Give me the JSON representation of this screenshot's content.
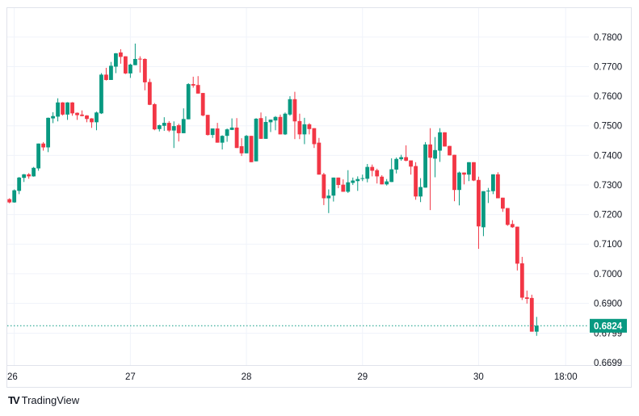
{
  "branding": {
    "name": "TradingView",
    "logo_glyph": "TV"
  },
  "colors": {
    "up": "#089981",
    "down": "#F23645",
    "grid": "#F0F3FA",
    "border": "#E0E3EB",
    "text": "#131722"
  },
  "chart_data": {
    "type": "candlestick",
    "interval": "1h",
    "first_candle": "25 23:00",
    "ohlc_columns": [
      "open",
      "high",
      "low",
      "close"
    ],
    "ohlc": [
      [
        0.7252,
        0.7255,
        0.7238,
        0.7241
      ],
      [
        0.7241,
        0.7285,
        0.724,
        0.7282
      ],
      [
        0.728,
        0.7327,
        0.7269,
        0.7325
      ],
      [
        0.7324,
        0.7337,
        0.731,
        0.7336
      ],
      [
        0.7336,
        0.734,
        0.7321,
        0.7329
      ],
      [
        0.7329,
        0.7361,
        0.7328,
        0.7358
      ],
      [
        0.7356,
        0.744,
        0.7348,
        0.744
      ],
      [
        0.744,
        0.7445,
        0.7416,
        0.7427
      ],
      [
        0.7427,
        0.7528,
        0.7411,
        0.7527
      ],
      [
        0.7525,
        0.7546,
        0.7509,
        0.7533
      ],
      [
        0.7531,
        0.7593,
        0.7515,
        0.7579
      ],
      [
        0.7579,
        0.758,
        0.7535,
        0.7538
      ],
      [
        0.7538,
        0.758,
        0.752,
        0.7579
      ],
      [
        0.7579,
        0.758,
        0.7534,
        0.7542
      ],
      [
        0.7544,
        0.7545,
        0.752,
        0.7536
      ],
      [
        0.7538,
        0.7552,
        0.7532,
        0.7533
      ],
      [
        0.7535,
        0.7536,
        0.7512,
        0.7523
      ],
      [
        0.7525,
        0.7526,
        0.7493,
        0.7512
      ],
      [
        0.7512,
        0.7548,
        0.7485,
        0.7545
      ],
      [
        0.7542,
        0.7678,
        0.754,
        0.7673
      ],
      [
        0.7673,
        0.7696,
        0.7653,
        0.7655
      ],
      [
        0.7655,
        0.7716,
        0.7655,
        0.7703
      ],
      [
        0.77,
        0.7746,
        0.7678,
        0.7745
      ],
      [
        0.7748,
        0.7759,
        0.771,
        0.7733
      ],
      [
        0.7735,
        0.7735,
        0.7675,
        0.7677
      ],
      [
        0.7677,
        0.771,
        0.7662,
        0.7707
      ],
      [
        0.7705,
        0.7778,
        0.7705,
        0.7726
      ],
      [
        0.7727,
        0.7735,
        0.768,
        0.7725
      ],
      [
        0.7726,
        0.7728,
        0.762,
        0.7647
      ],
      [
        0.7648,
        0.7659,
        0.757,
        0.7571
      ],
      [
        0.7573,
        0.7577,
        0.7485,
        0.7488
      ],
      [
        0.7489,
        0.7504,
        0.7481,
        0.7502
      ],
      [
        0.75,
        0.7529,
        0.7483,
        0.751
      ],
      [
        0.751,
        0.7516,
        0.7479,
        0.7484
      ],
      [
        0.7484,
        0.7515,
        0.7425,
        0.7499
      ],
      [
        0.7502,
        0.7507,
        0.7447,
        0.7475
      ],
      [
        0.7475,
        0.7559,
        0.7475,
        0.7523
      ],
      [
        0.7522,
        0.7644,
        0.7522,
        0.7641
      ],
      [
        0.7641,
        0.7666,
        0.7629,
        0.7636
      ],
      [
        0.7638,
        0.7668,
        0.7609,
        0.7609
      ],
      [
        0.7611,
        0.7611,
        0.7532,
        0.7535
      ],
      [
        0.7537,
        0.7537,
        0.7467,
        0.7469
      ],
      [
        0.7469,
        0.7491,
        0.7459,
        0.7491
      ],
      [
        0.7491,
        0.751,
        0.7443,
        0.7443
      ],
      [
        0.7443,
        0.7468,
        0.742,
        0.7466
      ],
      [
        0.7466,
        0.7491,
        0.7446,
        0.7488
      ],
      [
        0.7486,
        0.7525,
        0.7486,
        0.7494
      ],
      [
        0.7494,
        0.7526,
        0.7425,
        0.7425
      ],
      [
        0.7431,
        0.7458,
        0.7398,
        0.7407
      ],
      [
        0.7407,
        0.7469,
        0.7407,
        0.7466
      ],
      [
        0.7466,
        0.7466,
        0.7377,
        0.7377
      ],
      [
        0.738,
        0.7526,
        0.738,
        0.7524
      ],
      [
        0.7526,
        0.7545,
        0.7456,
        0.7456
      ],
      [
        0.7456,
        0.7532,
        0.7456,
        0.7513
      ],
      [
        0.7512,
        0.7521,
        0.7479,
        0.7521
      ],
      [
        0.7518,
        0.7533,
        0.7485,
        0.753
      ],
      [
        0.753,
        0.7538,
        0.7471,
        0.7471
      ],
      [
        0.7471,
        0.7545,
        0.7469,
        0.7541
      ],
      [
        0.7538,
        0.76,
        0.7534,
        0.759
      ],
      [
        0.759,
        0.7615,
        0.7455,
        0.7515
      ],
      [
        0.7516,
        0.7541,
        0.7455,
        0.7471
      ],
      [
        0.7471,
        0.7527,
        0.7438,
        0.7505
      ],
      [
        0.7505,
        0.7509,
        0.7471,
        0.7489
      ],
      [
        0.7492,
        0.7492,
        0.7425,
        0.7438
      ],
      [
        0.7443,
        0.7459,
        0.7335,
        0.7335
      ],
      [
        0.7336,
        0.7341,
        0.7232,
        0.7255
      ],
      [
        0.7255,
        0.7285,
        0.7205,
        0.7264
      ],
      [
        0.7264,
        0.7325,
        0.7244,
        0.7325
      ],
      [
        0.7325,
        0.7325,
        0.7289,
        0.73
      ],
      [
        0.7301,
        0.7319,
        0.7277,
        0.7277
      ],
      [
        0.7277,
        0.735,
        0.7273,
        0.7309
      ],
      [
        0.7307,
        0.7325,
        0.73,
        0.7315
      ],
      [
        0.7313,
        0.7329,
        0.728,
        0.732
      ],
      [
        0.7321,
        0.7335,
        0.7313,
        0.7323
      ],
      [
        0.7321,
        0.7371,
        0.7309,
        0.7361
      ],
      [
        0.7361,
        0.7369,
        0.7329,
        0.7348
      ],
      [
        0.735,
        0.7355,
        0.7305,
        0.7329
      ],
      [
        0.7328,
        0.7333,
        0.7302,
        0.7302
      ],
      [
        0.7302,
        0.732,
        0.7298,
        0.7312
      ],
      [
        0.731,
        0.739,
        0.731,
        0.7353
      ],
      [
        0.7352,
        0.7393,
        0.7339,
        0.7388
      ],
      [
        0.7387,
        0.7402,
        0.7382,
        0.7394
      ],
      [
        0.7394,
        0.7434,
        0.738,
        0.7382
      ],
      [
        0.7383,
        0.7383,
        0.7335,
        0.7362
      ],
      [
        0.7364,
        0.7377,
        0.725,
        0.7261
      ],
      [
        0.7261,
        0.7323,
        0.7242,
        0.7293
      ],
      [
        0.7291,
        0.7445,
        0.7291,
        0.7437
      ],
      [
        0.7437,
        0.7492,
        0.7215,
        0.7392
      ],
      [
        0.7389,
        0.7462,
        0.7326,
        0.7418
      ],
      [
        0.7416,
        0.7492,
        0.7378,
        0.7478
      ],
      [
        0.7478,
        0.7478,
        0.743,
        0.743
      ],
      [
        0.7432,
        0.7432,
        0.74,
        0.74
      ],
      [
        0.7402,
        0.7402,
        0.7245,
        0.7283
      ],
      [
        0.7283,
        0.7345,
        0.7231,
        0.7342
      ],
      [
        0.7342,
        0.7342,
        0.7302,
        0.7335
      ],
      [
        0.7335,
        0.7377,
        0.7313,
        0.7377
      ],
      [
        0.7377,
        0.7377,
        0.7313,
        0.7315
      ],
      [
        0.7317,
        0.7328,
        0.7084,
        0.716
      ],
      [
        0.7157,
        0.7279,
        0.7127,
        0.7279
      ],
      [
        0.7279,
        0.729,
        0.7239,
        0.7281
      ],
      [
        0.7279,
        0.7336,
        0.7269,
        0.7336
      ],
      [
        0.7336,
        0.7343,
        0.7255,
        0.7255
      ],
      [
        0.7257,
        0.7257,
        0.7209,
        0.722
      ],
      [
        0.7222,
        0.7222,
        0.7162,
        0.7165
      ],
      [
        0.7168,
        0.7181,
        0.7155,
        0.7157
      ],
      [
        0.7159,
        0.7159,
        0.7011,
        0.7034
      ],
      [
        0.7035,
        0.7057,
        0.6911,
        0.6919
      ],
      [
        0.692,
        0.6943,
        0.6899,
        0.6915
      ],
      [
        0.6918,
        0.6929,
        0.6804,
        0.6804
      ],
      [
        0.6804,
        0.6854,
        0.679,
        0.6824
      ]
    ],
    "y_ticks": [
      "0.7800",
      "0.7700",
      "0.7600",
      "0.7500",
      "0.7400",
      "0.7300",
      "0.7200",
      "0.7100",
      "0.7000",
      "0.6900",
      "0.6799",
      "0.6699"
    ],
    "x_ticks": [
      {
        "label": "26",
        "time": "26 00:00"
      },
      {
        "label": "27",
        "time": "27 00:00"
      },
      {
        "label": "28",
        "time": "28 00:00"
      },
      {
        "label": "29",
        "time": "29 00:00"
      },
      {
        "label": "30",
        "time": "30 00:00"
      },
      {
        "label": "18:00",
        "time": "30 18:00"
      }
    ],
    "ylim": [
      0.6691,
      0.7898
    ],
    "last_price": "0.6824",
    "grid": true,
    "price_axis": "right"
  }
}
